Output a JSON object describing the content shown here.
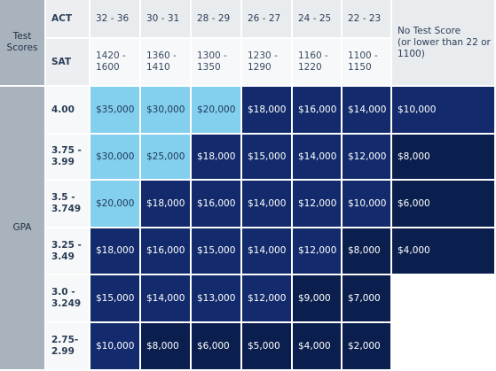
{
  "side_labels": {
    "test_scores": "Test\nScores",
    "gpa": "GPA"
  },
  "row_labels": {
    "act": "ACT",
    "sat": "SAT"
  },
  "act_ranges": [
    "32 - 36",
    "30 - 31",
    "28 - 29",
    "26 - 27",
    "24 - 25",
    "22 - 23"
  ],
  "sat_ranges": [
    "1420 -\n1600",
    "1360 -\n1410",
    "1300 -\n1350",
    "1230 -\n1290",
    "1160 -\n1220",
    "1100 -\n1150"
  ],
  "no_test_header": "No Test Score\n(or lower than 22 or\n1100)",
  "gpa_rows": [
    {
      "gpa": "4.00",
      "values": [
        "$35,000",
        "$30,000",
        "$20,000",
        "$18,000",
        "$16,000",
        "$14,000",
        "$10,000"
      ],
      "tones": [
        "light",
        "light",
        "light",
        "dark",
        "dark",
        "dark",
        "dark"
      ]
    },
    {
      "gpa": "3.75 -\n3.99",
      "values": [
        "$30,000",
        "$25,000",
        "$18,000",
        "$15,000",
        "$14,000",
        "$12,000",
        "$8,000"
      ],
      "tones": [
        "light",
        "light",
        "dark",
        "dark",
        "dark",
        "dark",
        "darkest"
      ]
    },
    {
      "gpa": "3.5 -\n3.749",
      "values": [
        "$20,000",
        "$18,000",
        "$16,000",
        "$14,000",
        "$12,000",
        "$10,000",
        "$6,000"
      ],
      "tones": [
        "light",
        "dark",
        "dark",
        "dark",
        "dark",
        "dark",
        "darkest"
      ]
    },
    {
      "gpa": "3.25 -\n3.49",
      "values": [
        "$18,000",
        "$16,000",
        "$15,000",
        "$14,000",
        "$12,000",
        "$8,000",
        "$4,000"
      ],
      "tones": [
        "dark",
        "dark",
        "dark",
        "dark",
        "dark",
        "darkest",
        "darkest"
      ]
    },
    {
      "gpa": "3.0 -\n3.249",
      "values": [
        "$15,000",
        "$14,000",
        "$13,000",
        "$12,000",
        "$9,000",
        "$7,000",
        ""
      ],
      "tones": [
        "dark",
        "dark",
        "dark",
        "dark",
        "darkest",
        "darkest",
        "blank"
      ]
    },
    {
      "gpa": "2.75-\n2.99",
      "values": [
        "$10,000",
        "$8,000",
        "$6,000",
        "$5,000",
        "$4,000",
        "$2,000",
        ""
      ],
      "tones": [
        "dark",
        "darkest",
        "darkest",
        "darkest",
        "darkest",
        "darkest",
        "blank"
      ]
    }
  ],
  "colors": {
    "light": "#83cfee",
    "dark": "#1f3f7f",
    "darkest": "#0b1f4f",
    "side": "#a9b3be",
    "header": "#e9ecef"
  }
}
